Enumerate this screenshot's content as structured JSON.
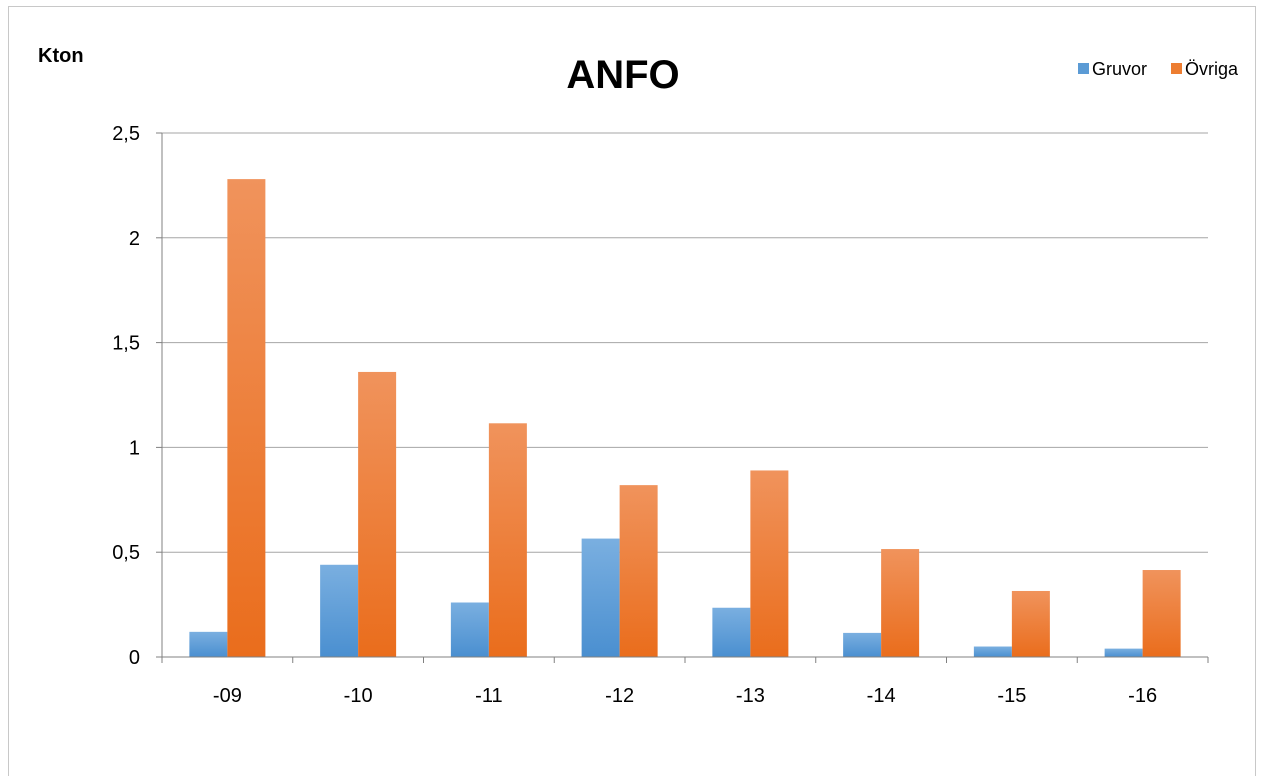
{
  "chart_data": {
    "type": "bar",
    "title": "ANFO",
    "ylabel": "Kton",
    "xlabel": "",
    "categories": [
      "-09",
      "-10",
      "-11",
      "-12",
      "-13",
      "-14",
      "-15",
      "-16"
    ],
    "series": [
      {
        "name": "Gruvor",
        "values": [
          0.12,
          0.44,
          0.26,
          0.565,
          0.235,
          0.115,
          0.05,
          0.04
        ]
      },
      {
        "name": "Övriga",
        "values": [
          2.28,
          1.36,
          1.115,
          0.82,
          0.89,
          0.515,
          0.315,
          0.415
        ]
      }
    ],
    "ylim": [
      0,
      2.5
    ],
    "yticks": [
      "0",
      "0,5",
      "1",
      "1,5",
      "2",
      "2,5"
    ],
    "grid": true,
    "legend": "top-right"
  },
  "colors": {
    "Gruvor": "#5b9bd5",
    "Övriga": "#ed7d31",
    "gridline": "#a6a6a6",
    "axis": "#808080"
  }
}
